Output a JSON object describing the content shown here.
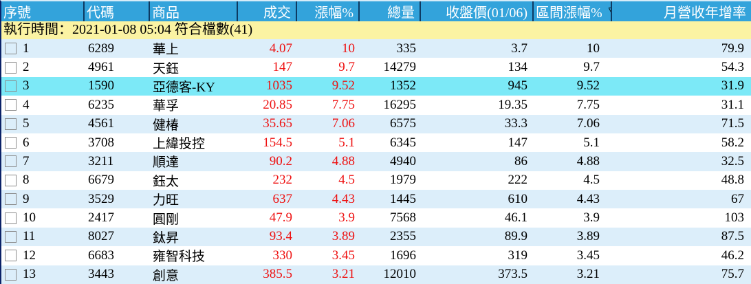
{
  "colors": {
    "header_bg": "#33a3db",
    "header_text": "#ffffff",
    "header_divider": "#0d3a62",
    "status_bg": "#fbf3a3",
    "row_bg": "#ffffff",
    "row_alt_bg": "#dceefa",
    "selected_row_bg": "#7ce9f7",
    "up_red": "#ee1111",
    "window_border": "#0b2268",
    "top_border": "#d7ecf8"
  },
  "status_bar": {
    "text": "執行時間：2021-01-08 05:04 符合檔數(41)"
  },
  "table": {
    "sort": {
      "column": "range_change_pct",
      "indicator": "▽",
      "direction": "desc"
    },
    "columns": [
      {
        "key": "seq",
        "label": "序號"
      },
      {
        "key": "code",
        "label": "代碼"
      },
      {
        "key": "name",
        "label": "商品"
      },
      {
        "key": "price",
        "label": "成交"
      },
      {
        "key": "change_pct",
        "label": "漲幅%"
      },
      {
        "key": "volume",
        "label": "總量"
      },
      {
        "key": "close_price",
        "label": "收盤價(01/06)"
      },
      {
        "key": "range_change_pct",
        "label": "區間漲幅%"
      },
      {
        "key": "revenue_yoy",
        "label": "月營收年增率"
      }
    ],
    "rows": [
      {
        "seq": "1",
        "code": "6289",
        "name": "華上",
        "price": "4.07",
        "change_pct": "10",
        "volume": "335",
        "close_price": "3.7",
        "range_change_pct": "10",
        "revenue_yoy": "79.9",
        "selected": false,
        "checked": false
      },
      {
        "seq": "2",
        "code": "4961",
        "name": "天鈺",
        "price": "147",
        "change_pct": "9.7",
        "volume": "14279",
        "close_price": "134",
        "range_change_pct": "9.7",
        "revenue_yoy": "54.3",
        "selected": false,
        "checked": false
      },
      {
        "seq": "3",
        "code": "1590",
        "name": "亞德客-KY",
        "price": "1035",
        "change_pct": "9.52",
        "volume": "1352",
        "close_price": "945",
        "range_change_pct": "9.52",
        "revenue_yoy": "31.9",
        "selected": true,
        "checked": false
      },
      {
        "seq": "4",
        "code": "6235",
        "name": "華孚",
        "price": "20.85",
        "change_pct": "7.75",
        "volume": "16295",
        "close_price": "19.35",
        "range_change_pct": "7.75",
        "revenue_yoy": "31.1",
        "selected": false,
        "checked": false
      },
      {
        "seq": "5",
        "code": "4561",
        "name": "健椿",
        "price": "35.65",
        "change_pct": "7.06",
        "volume": "6575",
        "close_price": "33.3",
        "range_change_pct": "7.06",
        "revenue_yoy": "71.5",
        "selected": false,
        "checked": false
      },
      {
        "seq": "6",
        "code": "3708",
        "name": "上緯投控",
        "price": "154.5",
        "change_pct": "5.1",
        "volume": "6345",
        "close_price": "147",
        "range_change_pct": "5.1",
        "revenue_yoy": "58.2",
        "selected": false,
        "checked": false
      },
      {
        "seq": "7",
        "code": "3211",
        "name": "順達",
        "price": "90.2",
        "change_pct": "4.88",
        "volume": "4940",
        "close_price": "86",
        "range_change_pct": "4.88",
        "revenue_yoy": "32.5",
        "selected": false,
        "checked": false
      },
      {
        "seq": "8",
        "code": "6679",
        "name": "鈺太",
        "price": "232",
        "change_pct": "4.5",
        "volume": "1979",
        "close_price": "222",
        "range_change_pct": "4.5",
        "revenue_yoy": "48.8",
        "selected": false,
        "checked": false
      },
      {
        "seq": "9",
        "code": "3529",
        "name": "力旺",
        "price": "637",
        "change_pct": "4.43",
        "volume": "1445",
        "close_price": "610",
        "range_change_pct": "4.43",
        "revenue_yoy": "67",
        "selected": false,
        "checked": false
      },
      {
        "seq": "10",
        "code": "2417",
        "name": "圓剛",
        "price": "47.9",
        "change_pct": "3.9",
        "volume": "7568",
        "close_price": "46.1",
        "range_change_pct": "3.9",
        "revenue_yoy": "103",
        "selected": false,
        "checked": false
      },
      {
        "seq": "11",
        "code": "8027",
        "name": "鈦昇",
        "price": "93.4",
        "change_pct": "3.89",
        "volume": "2355",
        "close_price": "89.9",
        "range_change_pct": "3.89",
        "revenue_yoy": "87.5",
        "selected": false,
        "checked": false
      },
      {
        "seq": "12",
        "code": "6683",
        "name": "雍智科技",
        "price": "330",
        "change_pct": "3.45",
        "volume": "1696",
        "close_price": "319",
        "range_change_pct": "3.45",
        "revenue_yoy": "46.2",
        "selected": false,
        "checked": false
      },
      {
        "seq": "13",
        "code": "3443",
        "name": "創意",
        "price": "385.5",
        "change_pct": "3.21",
        "volume": "12010",
        "close_price": "373.5",
        "range_change_pct": "3.21",
        "revenue_yoy": "75.7",
        "selected": false,
        "checked": false
      }
    ]
  }
}
